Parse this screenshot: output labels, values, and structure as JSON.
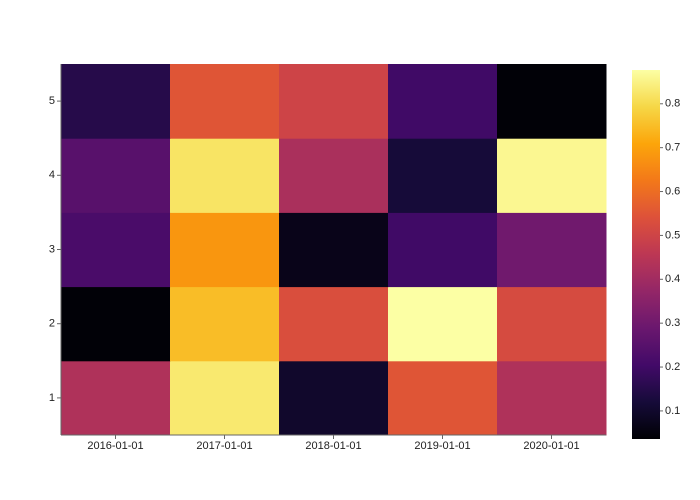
{
  "chart_data": {
    "type": "heatmap",
    "x": [
      "2016-01-01",
      "2017-01-01",
      "2018-01-01",
      "2019-01-01",
      "2020-01-01"
    ],
    "y": [
      1,
      2,
      3,
      4,
      5
    ],
    "z": [
      [
        0.43,
        0.83,
        0.1,
        0.55,
        0.43
      ],
      [
        0.04,
        0.75,
        0.53,
        0.877,
        0.52
      ],
      [
        0.22,
        0.68,
        0.07,
        0.2,
        0.3
      ],
      [
        0.25,
        0.82,
        0.42,
        0.12,
        0.86
      ],
      [
        0.15,
        0.55,
        0.5,
        0.2,
        0.04
      ]
    ],
    "colormap": "inferno",
    "zlim": [
      0.036,
      0.877
    ],
    "zticks": [
      0.1,
      0.2,
      0.3,
      0.4,
      0.5,
      0.6,
      0.7,
      0.8
    ],
    "yticks": [
      1,
      2,
      3,
      4,
      5
    ]
  }
}
